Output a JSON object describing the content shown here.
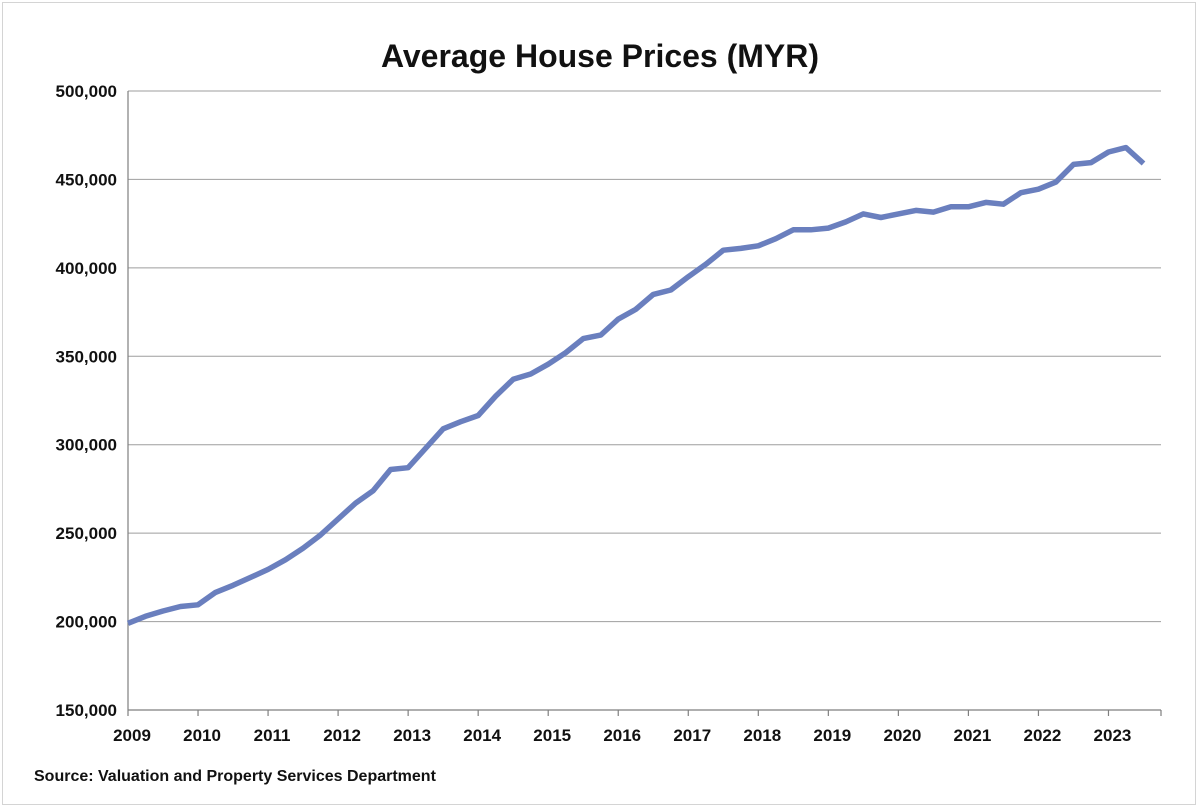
{
  "chart_data": {
    "type": "line",
    "title": "Average House Prices (MYR)",
    "xlabel": "",
    "ylabel": "",
    "ylim": [
      150000,
      500000
    ],
    "yticks": [
      150000,
      200000,
      250000,
      300000,
      350000,
      400000,
      450000,
      500000
    ],
    "ytick_labels": [
      "150,000",
      "200,000",
      "250,000",
      "300,000",
      "350,000",
      "400,000",
      "450,000",
      "500,000"
    ],
    "xlim": [
      2009,
      2023.75
    ],
    "xticks": [
      2009,
      2010,
      2011,
      2012,
      2013,
      2014,
      2015,
      2016,
      2017,
      2018,
      2019,
      2020,
      2021,
      2022,
      2023
    ],
    "xtick_labels": [
      "2009",
      "2010",
      "2011",
      "2012",
      "2013",
      "2014",
      "2015",
      "2016",
      "2017",
      "2018",
      "2019",
      "2020",
      "2021",
      "2022",
      "2023"
    ],
    "grid": true,
    "legend": "none",
    "line_color": "#6a7fbe",
    "series": [
      {
        "x": [
          "2009 Q1",
          "2009 Q2",
          "2009 Q3",
          "2009 Q4",
          "2010 Q1",
          "2010 Q2",
          "2010 Q3",
          "2010 Q4",
          "2011 Q1",
          "2011 Q2",
          "2011 Q3",
          "2011 Q4",
          "2012 Q1",
          "2012 Q2",
          "2012 Q3",
          "2012 Q4",
          "2013 Q1",
          "2013 Q2",
          "2013 Q3",
          "2013 Q4",
          "2014 Q1",
          "2014 Q2",
          "2014 Q3",
          "2014 Q4",
          "2015 Q1",
          "2015 Q2",
          "2015 Q3",
          "2015 Q4",
          "2016 Q1",
          "2016 Q2",
          "2016 Q3",
          "2016 Q4",
          "2017 Q1",
          "2017 Q2",
          "2017 Q3",
          "2017 Q4",
          "2018 Q1",
          "2018 Q2",
          "2018 Q3",
          "2018 Q4",
          "2019 Q1",
          "2019 Q2",
          "2019 Q3",
          "2019 Q4",
          "2020 Q1",
          "2020 Q2",
          "2020 Q3",
          "2020 Q4",
          "2021 Q1",
          "2021 Q2",
          "2021 Q3",
          "2021 Q4",
          "2022 Q1",
          "2022 Q2",
          "2022 Q3",
          "2022 Q4",
          "2023 Q1",
          "2023 Q2",
          "2023 Q3"
        ],
        "values": [
          199000,
          203000,
          206000,
          208500,
          209500,
          216500,
          220500,
          225000,
          229500,
          235000,
          241500,
          249000,
          258000,
          267000,
          274000,
          286000,
          287000,
          298000,
          309000,
          313000,
          316500,
          327500,
          337000,
          340000,
          345500,
          352000,
          360000,
          362000,
          371000,
          376500,
          385000,
          387500,
          395000,
          402000,
          410000,
          411000,
          412500,
          416500,
          421500,
          421500,
          422500,
          426000,
          430500,
          428500,
          430500,
          432500,
          431500,
          434500,
          434500,
          437000,
          436000,
          442500,
          444500,
          448500,
          458500,
          459500,
          465500,
          468000,
          459000
        ]
      }
    ]
  },
  "footer": {
    "source": "Source: Valuation and Property Services Department"
  }
}
